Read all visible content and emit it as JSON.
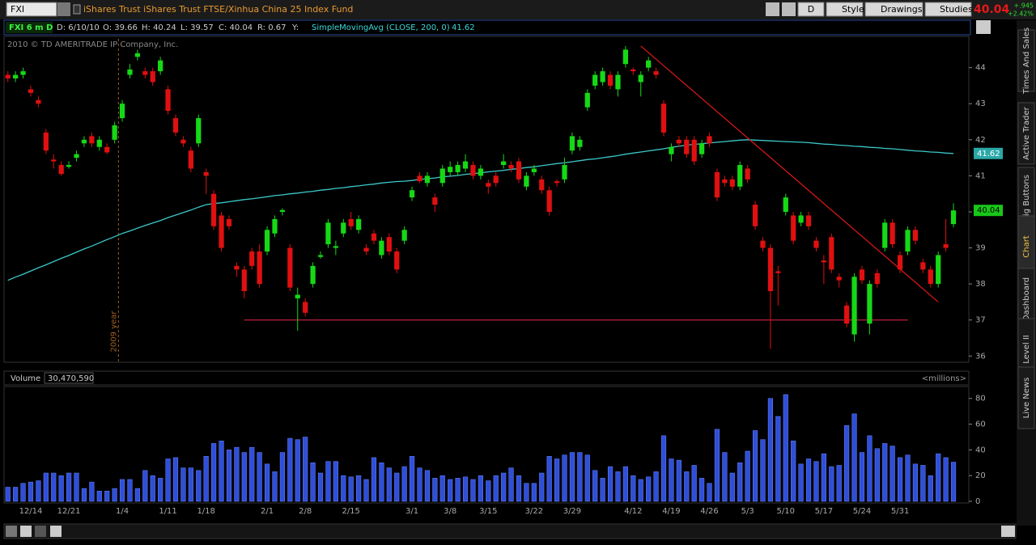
{
  "toolbar": {
    "symbol": "FXI",
    "description": "iShares Trust iShares Trust FTSE/Xinhua China 25 Index Fund",
    "buttons": [
      "D",
      "Style",
      "Drawings",
      "Studies"
    ],
    "last": "40.04",
    "change": "+.945",
    "change_pct": "+2.42%"
  },
  "info_bar": [
    "FXI 6 m D",
    "D: 6/10/10",
    "O: 39.66",
    "H: 40.24",
    "L: 39.57",
    "C: 40.04",
    "R: 0.67",
    "Y:"
  ],
  "study": {
    "name": "SimpleMovingAvg (CLOSE, 200, 0)",
    "value": "41.62"
  },
  "copyright": "2010 © TD AMERITRADE IP Company, Inc.",
  "side_tabs": [
    "Times And Sales",
    "Active Trader",
    "Big Buttons",
    "Chart",
    "Dashboard",
    "Level II",
    "Live News"
  ],
  "chart_data": [
    {
      "type": "candlestick",
      "up_color": "#16d916",
      "down_color": "#e01010",
      "categories": [
        null,
        null,
        null,
        "12/14",
        null,
        null,
        null,
        null,
        "12/21",
        null,
        null,
        null,
        null,
        null,
        null,
        "1/4",
        null,
        null,
        null,
        null,
        null,
        "1/11",
        null,
        null,
        null,
        null,
        "1/18",
        null,
        null,
        null,
        null,
        null,
        null,
        null,
        "2/1",
        null,
        null,
        null,
        null,
        "2/8",
        null,
        null,
        null,
        null,
        null,
        "2/15",
        null,
        null,
        null,
        null,
        null,
        null,
        null,
        "3/1",
        null,
        null,
        null,
        null,
        "3/8",
        null,
        null,
        null,
        null,
        "3/15",
        null,
        null,
        null,
        null,
        null,
        "3/22",
        null,
        null,
        null,
        null,
        "3/29",
        null,
        null,
        null,
        null,
        null,
        null,
        null,
        "4/12",
        null,
        null,
        null,
        null,
        "4/19",
        null,
        null,
        null,
        null,
        "4/26",
        null,
        null,
        null,
        null,
        "5/3",
        null,
        null,
        null,
        null,
        "5/10",
        null,
        null,
        null,
        null,
        "5/17",
        null,
        null,
        null,
        null,
        "5/24",
        null,
        null,
        null,
        null,
        "5/31",
        null,
        null,
        null,
        null,
        null,
        null,
        null
      ],
      "open": [
        43.8,
        43.7,
        43.8,
        43.4,
        43.1,
        42.2,
        41.45,
        41.3,
        41.25,
        41.5,
        41.9,
        42.1,
        41.8,
        41.8,
        42.0,
        42.6,
        43.8,
        44.3,
        43.9,
        43.9,
        43.9,
        43.4,
        42.6,
        42.0,
        41.7,
        41.9,
        41.1,
        40.5,
        39.9,
        39.8,
        38.5,
        38.4,
        38.9,
        38.9,
        38.9,
        39.4,
        40.0,
        39.0,
        37.6,
        37.5,
        38.0,
        38.75,
        39.1,
        39.0,
        39.4,
        39.8,
        39.5,
        39.0,
        39.4,
        38.8,
        39.3,
        38.9,
        39.2,
        40.4,
        41.0,
        40.8,
        40.4,
        40.8,
        41.1,
        41.1,
        41.2,
        41.3,
        41.0,
        40.8,
        41.0,
        41.3,
        41.3,
        41.4,
        40.7,
        41.1,
        40.9,
        40.6,
        40.85,
        40.9,
        41.7,
        41.8,
        42.9,
        43.5,
        43.6,
        43.8,
        43.4,
        44.1,
        43.95,
        43.6,
        44.0,
        43.9,
        43.0,
        41.6,
        42.0,
        42.0,
        42.0,
        41.6,
        42.1,
        41.1,
        40.9,
        40.9,
        40.7,
        41.2,
        40.2,
        39.2,
        39.0,
        38.35,
        40.0,
        39.9,
        39.7,
        39.9,
        39.2,
        38.65,
        39.3,
        38.2,
        37.4,
        36.6,
        38.4,
        36.9,
        38.3,
        39.0,
        39.7,
        38.8,
        38.9,
        39.5,
        38.6,
        38.4,
        38.0,
        39.1,
        39.66
      ],
      "high": [
        43.9,
        43.9,
        44.0,
        43.5,
        43.2,
        42.3,
        41.6,
        41.4,
        41.4,
        41.7,
        42.1,
        42.2,
        42.1,
        41.9,
        42.5,
        43.1,
        44.1,
        44.5,
        44.0,
        44.0,
        44.3,
        43.5,
        42.7,
        42.1,
        41.8,
        42.7,
        41.2,
        40.6,
        40.0,
        39.9,
        38.6,
        38.5,
        39.0,
        39.1,
        39.6,
        39.9,
        40.1,
        39.1,
        37.9,
        37.6,
        38.6,
        38.9,
        39.8,
        39.2,
        39.8,
        40.0,
        39.9,
        39.1,
        39.5,
        39.3,
        39.4,
        39.0,
        39.6,
        40.7,
        41.1,
        41.1,
        40.5,
        41.3,
        41.4,
        41.4,
        41.6,
        41.4,
        41.3,
        40.9,
        41.1,
        41.6,
        41.4,
        41.5,
        41.1,
        41.3,
        41.0,
        40.7,
        40.9,
        41.5,
        42.2,
        42.1,
        43.4,
        43.9,
        44.0,
        43.9,
        43.9,
        44.6,
        44.0,
        43.9,
        44.3,
        44.0,
        43.1,
        41.9,
        42.1,
        42.1,
        42.1,
        42.0,
        42.2,
        41.2,
        41.0,
        41.0,
        41.4,
        41.3,
        40.3,
        39.3,
        39.1,
        38.5,
        40.5,
        40.0,
        40.0,
        40.0,
        39.3,
        38.8,
        39.4,
        38.3,
        37.5,
        38.3,
        38.5,
        38.1,
        38.4,
        39.8,
        39.8,
        38.9,
        39.6,
        39.6,
        38.7,
        38.5,
        38.9,
        39.8,
        40.24
      ],
      "low": [
        43.6,
        43.6,
        43.7,
        43.2,
        42.9,
        41.6,
        41.2,
        41.0,
        41.2,
        41.4,
        41.8,
        41.8,
        41.7,
        41.6,
        41.9,
        42.5,
        43.7,
        44.2,
        43.7,
        43.5,
        43.8,
        42.7,
        42.1,
        41.8,
        41.1,
        41.8,
        40.5,
        39.5,
        38.9,
        39.5,
        38.2,
        37.6,
        38.4,
        37.9,
        38.8,
        39.3,
        39.9,
        37.8,
        36.7,
        37.1,
        37.9,
        38.7,
        39.0,
        38.8,
        39.3,
        39.5,
        39.4,
        38.8,
        39.1,
        38.7,
        38.8,
        38.3,
        39.1,
        40.3,
        40.8,
        40.7,
        40.0,
        40.7,
        41.0,
        41.0,
        41.1,
        40.9,
        40.9,
        40.5,
        40.7,
        41.2,
        41.1,
        40.8,
        40.6,
        41.0,
        40.5,
        39.9,
        40.7,
        40.8,
        41.6,
        41.7,
        42.8,
        43.4,
        43.5,
        43.4,
        43.2,
        44.0,
        43.8,
        43.2,
        43.9,
        43.7,
        42.1,
        41.4,
        41.8,
        41.5,
        41.3,
        41.5,
        41.8,
        40.3,
        40.7,
        40.6,
        40.6,
        40.8,
        39.5,
        38.9,
        36.2,
        37.4,
        39.9,
        39.1,
        39.6,
        39.5,
        38.9,
        38.0,
        38.3,
        37.9,
        36.8,
        36.4,
        38.0,
        36.6,
        37.9,
        38.9,
        39.0,
        38.3,
        38.8,
        39.1,
        38.3,
        37.9,
        37.9,
        38.9,
        39.57
      ],
      "close": [
        43.7,
        43.8,
        43.9,
        43.3,
        43.0,
        41.7,
        41.4,
        41.05,
        41.3,
        41.6,
        42.0,
        41.9,
        42.0,
        41.65,
        42.4,
        43.0,
        43.95,
        44.4,
        43.8,
        43.6,
        44.2,
        42.8,
        42.2,
        41.9,
        41.2,
        42.6,
        41.0,
        39.6,
        39.0,
        39.6,
        38.4,
        37.8,
        38.5,
        38.0,
        39.5,
        39.8,
        40.05,
        37.9,
        37.7,
        37.2,
        38.5,
        38.8,
        39.7,
        39.05,
        39.7,
        39.6,
        39.8,
        38.9,
        39.2,
        39.2,
        38.9,
        38.4,
        39.5,
        40.6,
        40.85,
        41.0,
        40.2,
        41.2,
        41.25,
        41.3,
        41.4,
        41.0,
        41.2,
        40.7,
        40.8,
        41.4,
        41.2,
        40.9,
        41.0,
        41.2,
        40.6,
        40.0,
        40.8,
        41.3,
        42.1,
        42.0,
        43.3,
        43.8,
        43.9,
        43.5,
        43.8,
        44.5,
        43.9,
        43.8,
        44.2,
        43.8,
        42.2,
        41.8,
        41.9,
        41.6,
        41.4,
        41.9,
        41.9,
        40.4,
        40.8,
        40.7,
        41.3,
        40.9,
        39.6,
        39.0,
        37.8,
        38.3,
        40.4,
        39.2,
        39.9,
        39.6,
        39.0,
        38.6,
        38.4,
        38.1,
        36.9,
        38.2,
        38.1,
        38.0,
        38.0,
        39.7,
        39.1,
        38.4,
        39.5,
        39.2,
        38.4,
        38.0,
        38.8,
        39.0,
        40.04
      ],
      "sma": {
        "color": "#3cc8c8",
        "values": [
          38.1,
          38.19,
          38.27,
          38.36,
          38.45,
          38.53,
          38.62,
          38.71,
          38.79,
          38.88,
          38.97,
          39.05,
          39.14,
          39.23,
          39.31,
          39.4,
          39.47,
          39.55,
          39.62,
          39.69,
          39.76,
          39.84,
          39.91,
          39.98,
          40.05,
          40.13,
          40.2,
          40.23,
          40.25,
          40.28,
          40.31,
          40.34,
          40.36,
          40.39,
          40.42,
          40.45,
          40.47,
          40.5,
          40.52,
          40.55,
          40.57,
          40.6,
          40.62,
          40.65,
          40.67,
          40.7,
          40.72,
          40.75,
          40.77,
          40.8,
          40.82,
          40.84,
          40.85,
          40.87,
          40.9,
          40.92,
          40.94,
          40.97,
          40.99,
          41.01,
          41.04,
          41.06,
          41.08,
          41.11,
          41.13,
          41.15,
          41.18,
          41.2,
          41.23,
          41.25,
          41.28,
          41.31,
          41.34,
          41.36,
          41.39,
          41.42,
          41.45,
          41.47,
          41.5,
          41.53,
          41.56,
          41.6,
          41.63,
          41.66,
          41.69,
          41.72,
          41.75,
          41.79,
          41.82,
          41.85,
          41.87,
          41.89,
          41.91,
          41.93,
          41.95,
          41.97,
          41.99,
          42.0,
          41.99,
          41.98,
          41.97,
          41.96,
          41.95,
          41.94,
          41.93,
          41.92,
          41.9,
          41.88,
          41.87,
          41.85,
          41.84,
          41.82,
          41.81,
          41.79,
          41.78,
          41.76,
          41.75,
          41.73,
          41.71,
          41.69,
          41.68,
          41.66,
          41.65,
          41.63,
          41.62
        ]
      },
      "annotations": [
        {
          "from": {
            "index": 83,
            "value": 44.6
          },
          "to": {
            "index": 122,
            "value": 37.5
          },
          "color": "#e01818"
        },
        {
          "from": {
            "index": 31,
            "value": 37.0
          },
          "to": {
            "index": 118,
            "value": 37.0
          },
          "color": "#c02040"
        }
      ],
      "year_marker": {
        "label": "2009 year",
        "index": 15
      },
      "ylim": [
        35.85,
        44.8
      ],
      "yticks": [
        36,
        37,
        38,
        39,
        40,
        41,
        42,
        43,
        44
      ]
    },
    {
      "type": "bar",
      "title": "Volume",
      "total": "30,470,590",
      "unit_label": "<millions>",
      "color": "#2f4fd8",
      "values": [
        11,
        11,
        14,
        15,
        16,
        22,
        22,
        20,
        22,
        22,
        10,
        15,
        8,
        8,
        10,
        17,
        17,
        10,
        24,
        20,
        18,
        33,
        34,
        26,
        26,
        24,
        35,
        45,
        47,
        40,
        42,
        38,
        42,
        38,
        29,
        23,
        38,
        49,
        48,
        50,
        30,
        22,
        31,
        31,
        20,
        19,
        20,
        17,
        34,
        30,
        26,
        22,
        27,
        35,
        26,
        24,
        18,
        20,
        17,
        18,
        19,
        17,
        20,
        16,
        20,
        22,
        26,
        20,
        14,
        14,
        22,
        35,
        33,
        36,
        38,
        38,
        36,
        24,
        18,
        27,
        23,
        27,
        20,
        17,
        19,
        23,
        51,
        33,
        32,
        23,
        28,
        18,
        14,
        56,
        38,
        22,
        30,
        39,
        55,
        48,
        80,
        66,
        83,
        47,
        29,
        33,
        31,
        37,
        27,
        28,
        59,
        68,
        38,
        51,
        41,
        45,
        43,
        34,
        36,
        29,
        28,
        20,
        37,
        34,
        30.47
      ],
      "ylim": [
        0,
        88
      ],
      "yticks": [
        0,
        20,
        40,
        60,
        80
      ]
    }
  ]
}
